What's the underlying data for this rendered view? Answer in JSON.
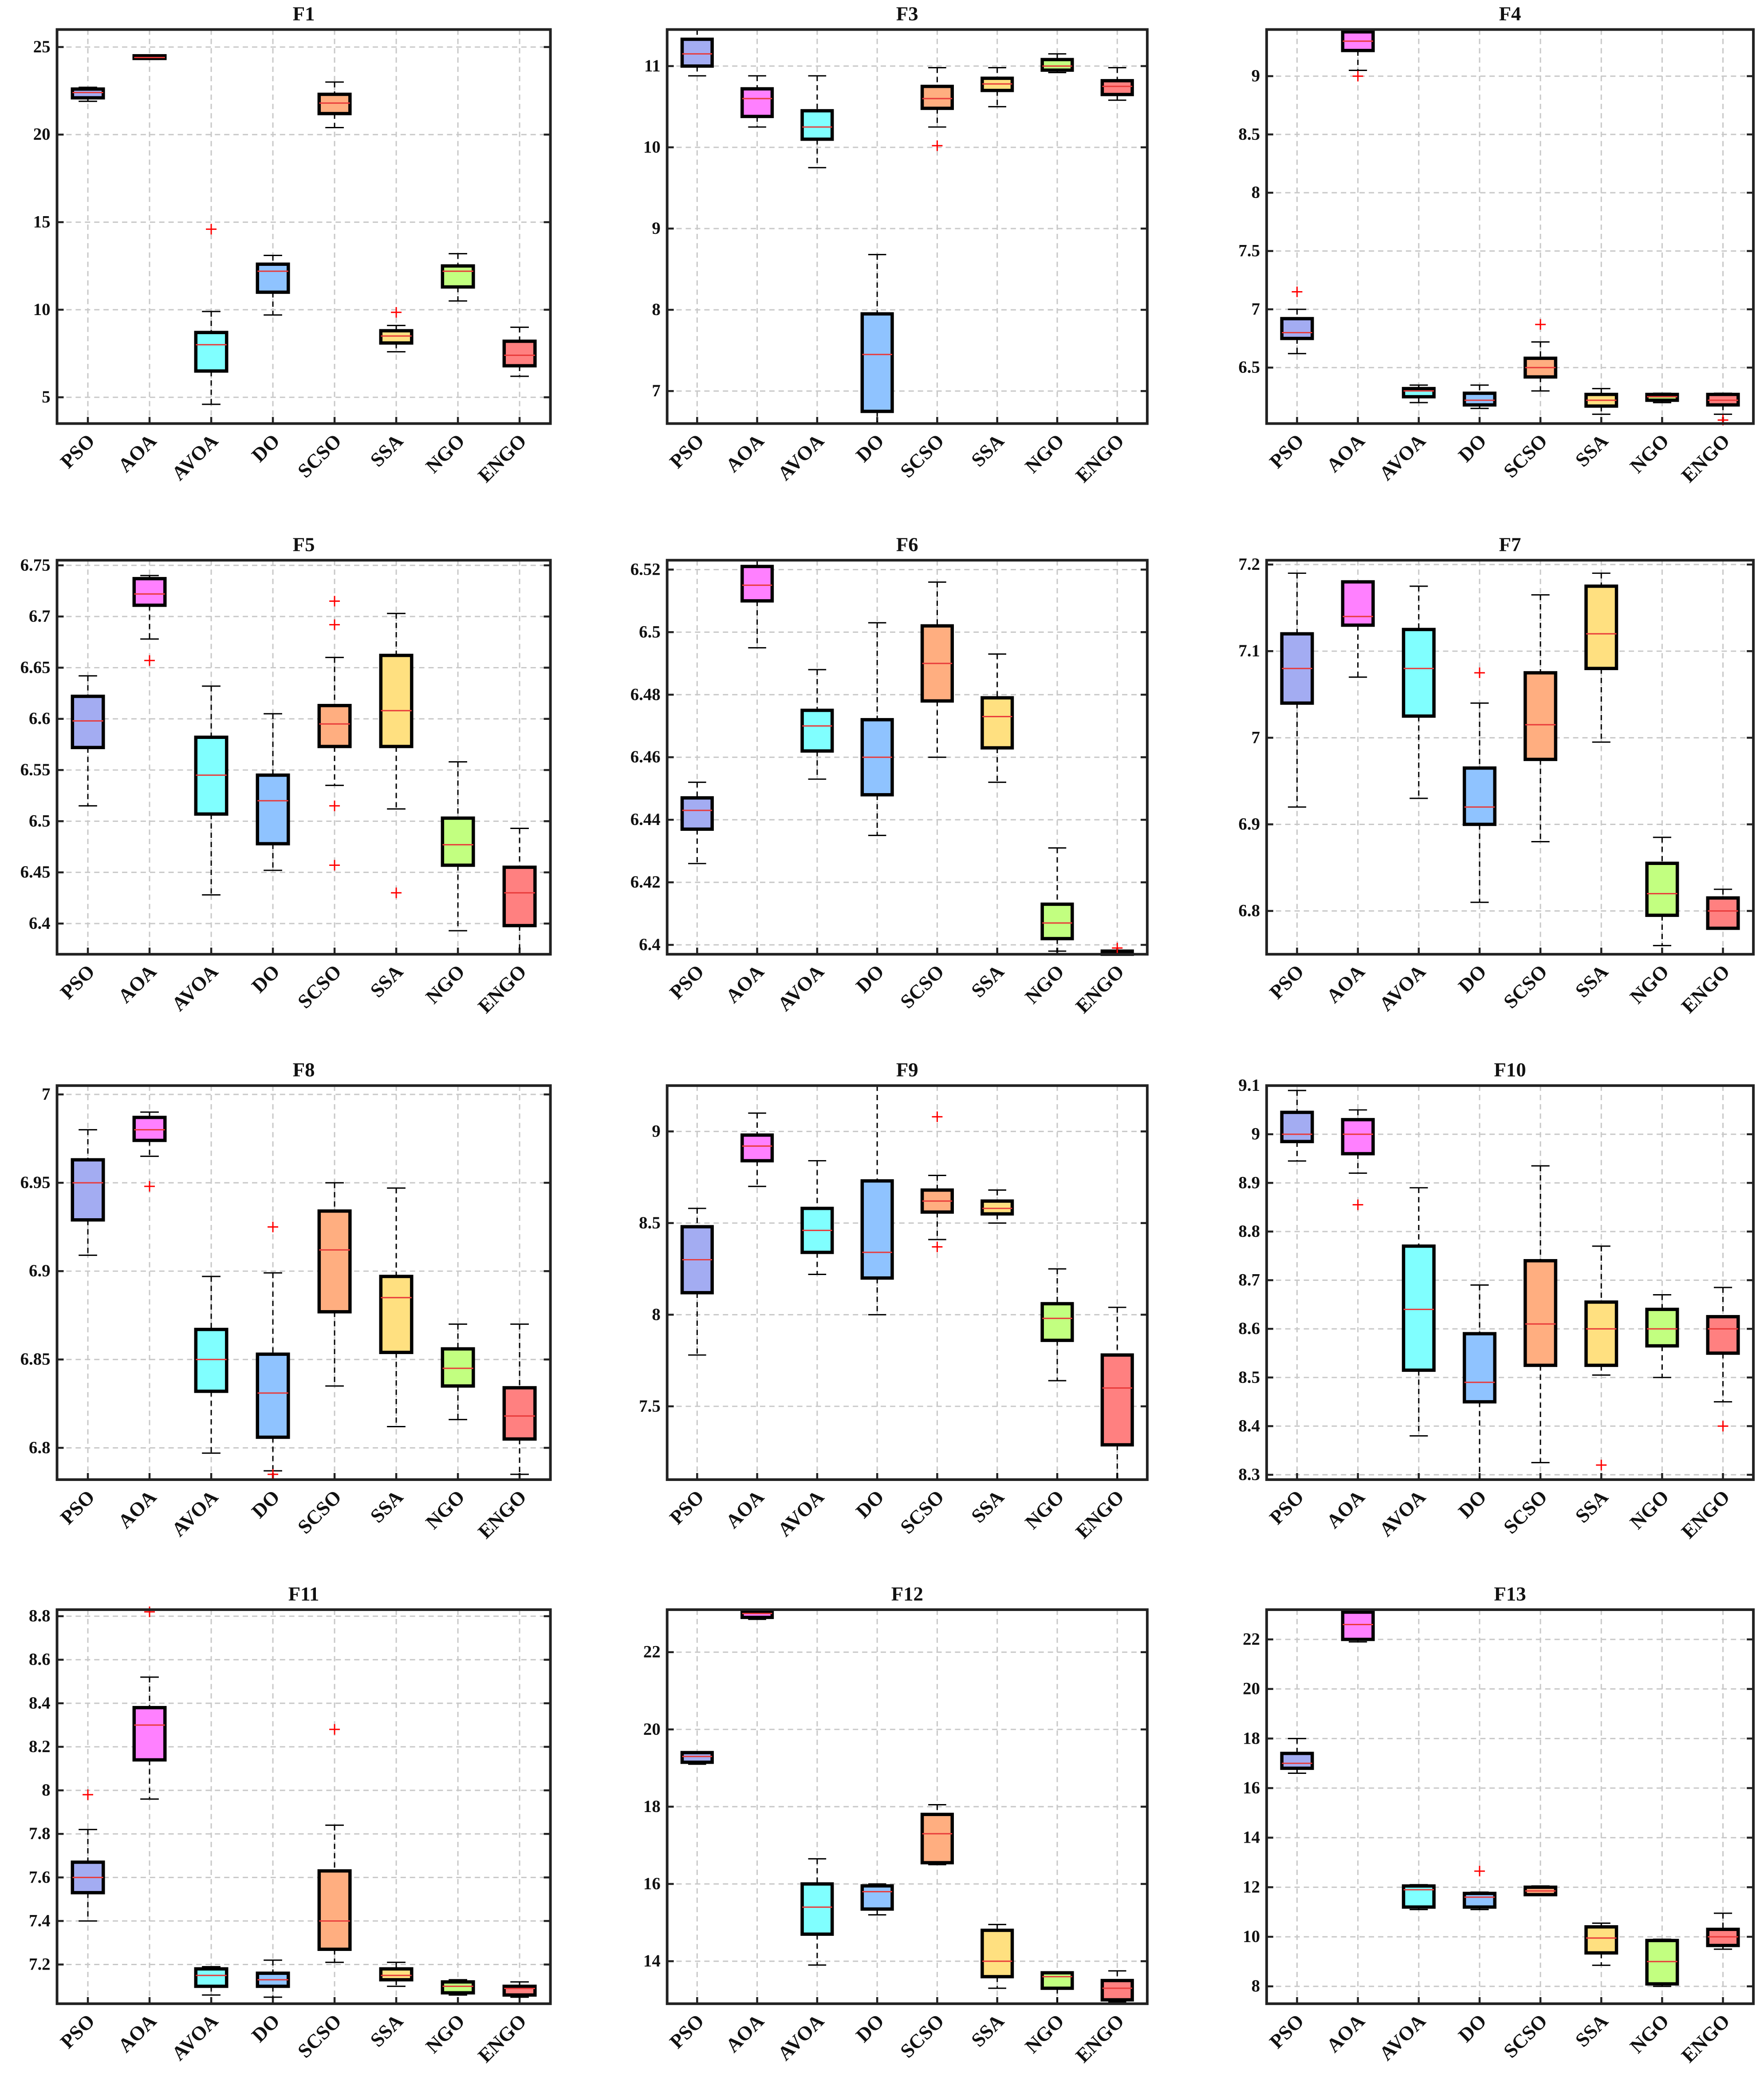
{
  "chart_data": {
    "type": "boxplot",
    "categories": [
      "PSO",
      "AOA",
      "AVOA",
      "DO",
      "SCSO",
      "SSA",
      "NGO",
      "ENGO"
    ],
    "colors": [
      "#a3acf2",
      "#ff80ff",
      "#80ffff",
      "#8fc3ff",
      "#ffae80",
      "#ffe080",
      "#c2ff80",
      "#ff8080"
    ],
    "box_format": "[whisker_low, q1, median, q3, whisker_high, outliers]",
    "panels": [
      {
        "title": "F1",
        "ylim": [
          3.5,
          26
        ],
        "yticks": [
          5,
          10,
          15,
          20,
          25
        ],
        "boxes": [
          [
            21.9,
            22.1,
            22.4,
            22.6,
            22.7,
            []
          ],
          [
            24.3,
            24.35,
            24.4,
            24.5,
            24.5,
            []
          ],
          [
            4.6,
            6.5,
            8.0,
            8.7,
            9.9,
            [
              14.6
            ]
          ],
          [
            9.7,
            11.0,
            12.2,
            12.6,
            13.1,
            []
          ],
          [
            20.4,
            21.2,
            21.8,
            22.3,
            23.0,
            []
          ],
          [
            7.6,
            8.1,
            8.5,
            8.8,
            9.1,
            [
              9.85
            ]
          ],
          [
            10.5,
            11.3,
            12.2,
            12.5,
            13.2,
            []
          ],
          [
            6.2,
            6.8,
            7.4,
            8.2,
            9.0,
            []
          ]
        ]
      },
      {
        "title": "F3",
        "ylim": [
          6.6,
          11.45
        ],
        "yticks": [
          7,
          8,
          9,
          10,
          11
        ],
        "boxes": [
          [
            10.88,
            11.0,
            11.15,
            11.33,
            11.45,
            []
          ],
          [
            10.25,
            10.38,
            10.6,
            10.72,
            10.88,
            []
          ],
          [
            9.75,
            10.1,
            10.25,
            10.45,
            10.88,
            []
          ],
          [
            6.6,
            6.75,
            7.45,
            7.95,
            8.68,
            []
          ],
          [
            10.25,
            10.48,
            10.6,
            10.75,
            10.98,
            [
              10.02
            ]
          ],
          [
            10.5,
            10.7,
            10.78,
            10.85,
            10.98,
            []
          ],
          [
            10.92,
            10.95,
            11.0,
            11.08,
            11.15,
            []
          ],
          [
            10.58,
            10.65,
            10.75,
            10.82,
            10.98,
            []
          ]
        ]
      },
      {
        "title": "F4",
        "ylim": [
          6.02,
          9.4
        ],
        "yticks": [
          6.5,
          7,
          7.5,
          8,
          8.5,
          9
        ],
        "boxes": [
          [
            6.62,
            6.75,
            6.8,
            6.92,
            7.0,
            [
              7.15
            ]
          ],
          [
            9.05,
            9.22,
            9.3,
            9.38,
            9.4,
            [
              9.0
            ]
          ],
          [
            6.2,
            6.25,
            6.3,
            6.32,
            6.35,
            []
          ],
          [
            6.15,
            6.18,
            6.22,
            6.28,
            6.35,
            []
          ],
          [
            6.3,
            6.42,
            6.5,
            6.58,
            6.72,
            [
              6.87
            ]
          ],
          [
            6.1,
            6.17,
            6.22,
            6.27,
            6.32,
            []
          ],
          [
            6.2,
            6.22,
            6.25,
            6.27,
            6.28,
            []
          ],
          [
            6.1,
            6.18,
            6.22,
            6.27,
            6.28,
            [
              6.05
            ]
          ]
        ]
      },
      {
        "title": "F5",
        "ylim": [
          6.37,
          6.755
        ],
        "yticks": [
          6.4,
          6.45,
          6.5,
          6.55,
          6.6,
          6.65,
          6.7,
          6.75
        ],
        "boxes": [
          [
            6.515,
            6.572,
            6.598,
            6.622,
            6.642,
            []
          ],
          [
            6.678,
            6.711,
            6.722,
            6.737,
            6.74,
            [
              6.657
            ]
          ],
          [
            6.428,
            6.507,
            6.545,
            6.582,
            6.632,
            []
          ],
          [
            6.452,
            6.478,
            6.52,
            6.545,
            6.605,
            []
          ],
          [
            6.535,
            6.573,
            6.595,
            6.613,
            6.66,
            [
              6.715,
              6.692,
              6.515,
              6.457
            ]
          ],
          [
            6.512,
            6.573,
            6.608,
            6.662,
            6.703,
            [
              6.43
            ]
          ],
          [
            6.393,
            6.457,
            6.477,
            6.503,
            6.558,
            []
          ],
          [
            6.37,
            6.398,
            6.43,
            6.455,
            6.493,
            []
          ]
        ]
      },
      {
        "title": "F6",
        "ylim": [
          6.397,
          6.523
        ],
        "yticks": [
          6.4,
          6.42,
          6.44,
          6.46,
          6.48,
          6.5,
          6.52
        ],
        "boxes": [
          [
            6.426,
            6.437,
            6.443,
            6.447,
            6.452,
            []
          ],
          [
            6.495,
            6.51,
            6.515,
            6.521,
            6.523,
            []
          ],
          [
            6.453,
            6.462,
            6.47,
            6.475,
            6.488,
            []
          ],
          [
            6.435,
            6.448,
            6.46,
            6.472,
            6.503,
            []
          ],
          [
            6.46,
            6.478,
            6.49,
            6.502,
            6.516,
            []
          ],
          [
            6.452,
            6.463,
            6.473,
            6.479,
            6.493,
            []
          ],
          [
            6.398,
            6.402,
            6.407,
            6.413,
            6.431,
            []
          ],
          [
            6.397,
            6.397,
            6.397,
            6.398,
            6.398,
            [
              6.399
            ]
          ]
        ]
      },
      {
        "title": "F7",
        "ylim": [
          6.75,
          7.205
        ],
        "yticks": [
          6.8,
          6.9,
          7,
          7.1,
          7.2
        ],
        "boxes": [
          [
            6.92,
            7.04,
            7.08,
            7.12,
            7.19,
            []
          ],
          [
            7.07,
            7.13,
            7.14,
            7.18,
            7.18,
            []
          ],
          [
            6.93,
            7.025,
            7.08,
            7.125,
            7.175,
            []
          ],
          [
            6.81,
            6.9,
            6.92,
            6.965,
            7.04,
            [
              7.075
            ]
          ],
          [
            6.88,
            6.975,
            7.015,
            7.075,
            7.165,
            []
          ],
          [
            6.995,
            7.08,
            7.12,
            7.175,
            7.19,
            []
          ],
          [
            6.76,
            6.795,
            6.82,
            6.855,
            6.885,
            []
          ],
          [
            6.78,
            6.78,
            6.8,
            6.815,
            6.825,
            []
          ]
        ]
      },
      {
        "title": "F8",
        "ylim": [
          6.782,
          7.005
        ],
        "yticks": [
          6.8,
          6.85,
          6.9,
          6.95,
          7
        ],
        "boxes": [
          [
            6.909,
            6.929,
            6.95,
            6.963,
            6.98,
            []
          ],
          [
            6.965,
            6.974,
            6.98,
            6.987,
            6.99,
            [
              6.948
            ]
          ],
          [
            6.797,
            6.832,
            6.85,
            6.867,
            6.897,
            []
          ],
          [
            6.787,
            6.806,
            6.831,
            6.853,
            6.899,
            [
              6.925,
              6.785
            ]
          ],
          [
            6.835,
            6.877,
            6.912,
            6.934,
            6.95,
            []
          ],
          [
            6.812,
            6.854,
            6.885,
            6.897,
            6.947,
            []
          ],
          [
            6.816,
            6.835,
            6.845,
            6.856,
            6.87,
            []
          ],
          [
            6.785,
            6.805,
            6.818,
            6.834,
            6.87,
            []
          ]
        ]
      },
      {
        "title": "F9",
        "ylim": [
          7.1,
          9.25
        ],
        "yticks": [
          7.5,
          8,
          8.5,
          9
        ],
        "boxes": [
          [
            7.78,
            8.12,
            8.3,
            8.48,
            8.58,
            []
          ],
          [
            8.7,
            8.84,
            8.92,
            8.98,
            9.1,
            []
          ],
          [
            8.22,
            8.34,
            8.46,
            8.58,
            8.84,
            []
          ],
          [
            8.0,
            8.2,
            8.34,
            8.73,
            9.25,
            []
          ],
          [
            8.41,
            8.56,
            8.62,
            8.68,
            8.76,
            [
              9.08,
              8.37
            ]
          ],
          [
            8.5,
            8.55,
            8.58,
            8.62,
            8.68,
            []
          ],
          [
            7.64,
            7.86,
            7.98,
            8.06,
            8.25,
            []
          ],
          [
            7.1,
            7.29,
            7.6,
            7.78,
            8.04,
            []
          ]
        ]
      },
      {
        "title": "F10",
        "ylim": [
          8.29,
          9.1
        ],
        "yticks": [
          8.3,
          8.4,
          8.5,
          8.6,
          8.7,
          8.8,
          8.9,
          9,
          9.1
        ],
        "boxes": [
          [
            8.945,
            8.985,
            9.0,
            9.045,
            9.09,
            []
          ],
          [
            8.92,
            8.96,
            9.0,
            9.03,
            9.05,
            [
              8.855
            ]
          ],
          [
            8.38,
            8.515,
            8.64,
            8.77,
            8.89,
            []
          ],
          [
            8.29,
            8.45,
            8.49,
            8.59,
            8.69,
            []
          ],
          [
            8.325,
            8.525,
            8.61,
            8.74,
            8.935,
            []
          ],
          [
            8.505,
            8.525,
            8.6,
            8.655,
            8.77,
            [
              8.32
            ]
          ],
          [
            8.5,
            8.565,
            8.6,
            8.64,
            8.67,
            []
          ],
          [
            8.45,
            8.55,
            8.6,
            8.625,
            8.685,
            [
              8.4
            ]
          ]
        ]
      },
      {
        "title": "F11",
        "ylim": [
          7.02,
          8.83
        ],
        "yticks": [
          7.2,
          7.4,
          7.6,
          7.8,
          8,
          8.2,
          8.4,
          8.6,
          8.8
        ],
        "boxes": [
          [
            7.4,
            7.53,
            7.6,
            7.67,
            7.82,
            [
              7.98
            ]
          ],
          [
            7.96,
            8.14,
            8.3,
            8.38,
            8.52,
            [
              8.82
            ]
          ],
          [
            7.06,
            7.1,
            7.15,
            7.18,
            7.19,
            []
          ],
          [
            7.05,
            7.1,
            7.13,
            7.16,
            7.22,
            []
          ],
          [
            7.21,
            7.27,
            7.4,
            7.63,
            7.84,
            [
              8.28
            ]
          ],
          [
            7.1,
            7.13,
            7.15,
            7.18,
            7.21,
            []
          ],
          [
            7.06,
            7.07,
            7.1,
            7.12,
            7.13,
            []
          ],
          [
            7.05,
            7.06,
            7.09,
            7.1,
            7.12,
            []
          ]
        ]
      },
      {
        "title": "F12",
        "ylim": [
          12.9,
          23.1
        ],
        "yticks": [
          14,
          16,
          18,
          20,
          22
        ],
        "boxes": [
          [
            19.1,
            19.15,
            19.3,
            19.4,
            19.4,
            []
          ],
          [
            22.85,
            22.9,
            23.0,
            23.05,
            23.1,
            []
          ],
          [
            13.9,
            14.7,
            15.4,
            16.0,
            16.65,
            []
          ],
          [
            15.2,
            15.35,
            15.8,
            15.95,
            16.0,
            []
          ],
          [
            16.5,
            16.55,
            17.3,
            17.8,
            18.05,
            []
          ],
          [
            13.3,
            13.6,
            14.0,
            14.8,
            14.95,
            []
          ],
          [
            12.9,
            13.3,
            13.6,
            13.7,
            13.7,
            []
          ],
          [
            12.95,
            13.0,
            13.3,
            13.5,
            13.75,
            []
          ]
        ]
      },
      {
        "title": "F13",
        "ylim": [
          7.3,
          23.2
        ],
        "yticks": [
          8,
          10,
          12,
          14,
          16,
          18,
          20,
          22
        ],
        "boxes": [
          [
            16.6,
            16.8,
            17.0,
            17.4,
            18.0,
            []
          ],
          [
            21.9,
            22.0,
            22.6,
            23.1,
            23.2,
            []
          ],
          [
            11.1,
            11.2,
            11.9,
            12.05,
            12.1,
            []
          ],
          [
            11.1,
            11.2,
            11.6,
            11.75,
            11.8,
            [
              12.65
            ]
          ],
          [
            11.7,
            11.7,
            11.85,
            12.0,
            12.05,
            []
          ],
          [
            8.85,
            9.35,
            9.95,
            10.4,
            10.55,
            []
          ],
          [
            8.0,
            8.1,
            9.0,
            9.85,
            9.9,
            []
          ],
          [
            9.5,
            9.65,
            10.0,
            10.3,
            10.95,
            []
          ]
        ]
      }
    ]
  }
}
